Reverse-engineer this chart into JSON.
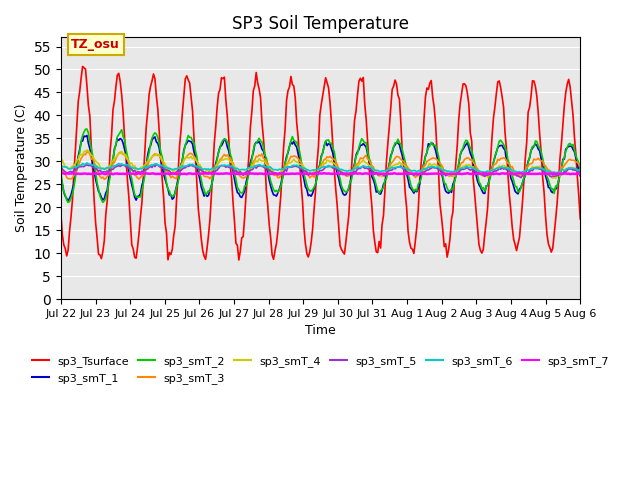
{
  "title": "SP3 Soil Temperature",
  "xlabel": "Time",
  "ylabel": "Soil Temperature (C)",
  "annotation": "TZ_osu",
  "ylim": [
    0,
    57
  ],
  "yticks": [
    0,
    5,
    10,
    15,
    20,
    25,
    30,
    35,
    40,
    45,
    50,
    55
  ],
  "n_days": 15,
  "bg_color": "#e8e8e8",
  "series_colors": {
    "sp3_Tsurface": "#ff0000",
    "sp3_smT_1": "#0000cc",
    "sp3_smT_2": "#00cc00",
    "sp3_smT_3": "#ff8800",
    "sp3_smT_4": "#cccc00",
    "sp3_smT_5": "#9933cc",
    "sp3_smT_6": "#00cccc",
    "sp3_smT_7": "#ff00ff"
  },
  "x_tick_labels": [
    "Jul 22",
    "Jul 23",
    "Jul 24",
    "Jul 25",
    "Jul 26",
    "Jul 27",
    "Jul 28",
    "Jul 29",
    "Jul 30",
    "Jul 31",
    "Aug 1",
    "Aug 2",
    "Aug 3",
    "Aug 4",
    "Aug 5",
    "Aug 6"
  ]
}
